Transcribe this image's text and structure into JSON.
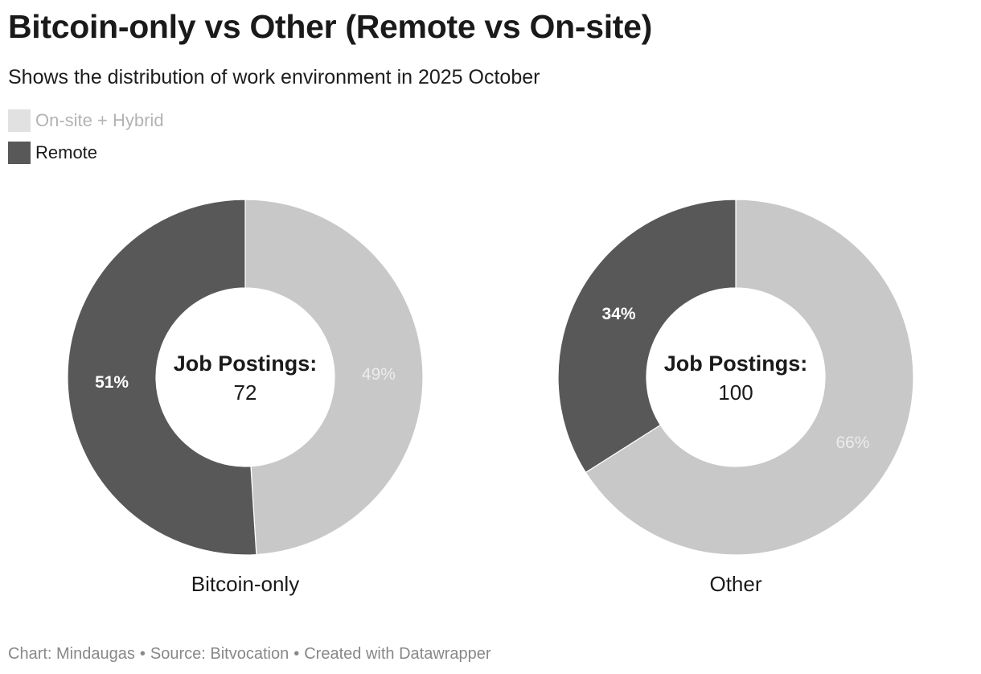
{
  "title": "Bitcoin-only vs Other (Remote vs On-site)",
  "subtitle": "Shows the distribution of work environment in 2025 October",
  "legend": [
    {
      "label": "On-site + Hybrid",
      "color": "#c8c8c8",
      "faded": true
    },
    {
      "label": "Remote",
      "color": "#585858",
      "faded": false
    }
  ],
  "chart_data": [
    {
      "type": "pie",
      "subtype": "donut",
      "chart_label": "Bitcoin-only",
      "center_title": "Job Postings:",
      "center_value": "72",
      "slices": [
        {
          "name": "On-site + Hybrid",
          "value": 49,
          "label": "49%",
          "color": "#c8c8c8",
          "label_color": "#ececec"
        },
        {
          "name": "Remote",
          "value": 51,
          "label": "51%",
          "color": "#585858",
          "label_color": "#ffffff"
        }
      ]
    },
    {
      "type": "pie",
      "subtype": "donut",
      "chart_label": "Other",
      "center_title": "Job Postings:",
      "center_value": "100",
      "slices": [
        {
          "name": "On-site + Hybrid",
          "value": 66,
          "label": "66%",
          "color": "#c8c8c8",
          "label_color": "#ececec"
        },
        {
          "name": "Remote",
          "value": 34,
          "label": "34%",
          "color": "#585858",
          "label_color": "#ffffff"
        }
      ]
    }
  ],
  "footer": {
    "chart_by": "Chart: Mindaugas",
    "source": "Source: Bitvocation",
    "created": "Created with Datawrapper",
    "separator": "•"
  }
}
